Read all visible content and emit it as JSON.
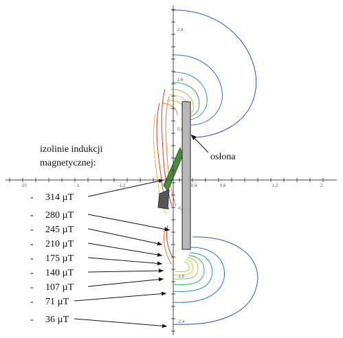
{
  "legend": {
    "title_line1": "izolinie indukcji",
    "title_line2": "magnetycznej:",
    "dash": "-",
    "items": [
      "314 µT",
      "280 µT",
      "245 µT",
      "210 µT",
      "175 µT",
      "140 µT",
      "107 µT",
      "71 µT",
      "36 µT"
    ]
  },
  "shield_label": "osłona",
  "x_ticks": [
    "-10",
    "-1",
    "-1,2",
    "0,4",
    "0,8",
    "1,2",
    "2"
  ],
  "y_ticks": [
    "2,4",
    "1,6",
    "0,8",
    "-0,4",
    "-1,6",
    "-2,4"
  ],
  "isoline_colors": [
    "#e03a2a",
    "#f07a2a",
    "#f0b040",
    "#d4c84a",
    "#9cc450",
    "#3aa858",
    "#2a9a8a",
    "#2c74c4",
    "#2a56b8"
  ]
}
